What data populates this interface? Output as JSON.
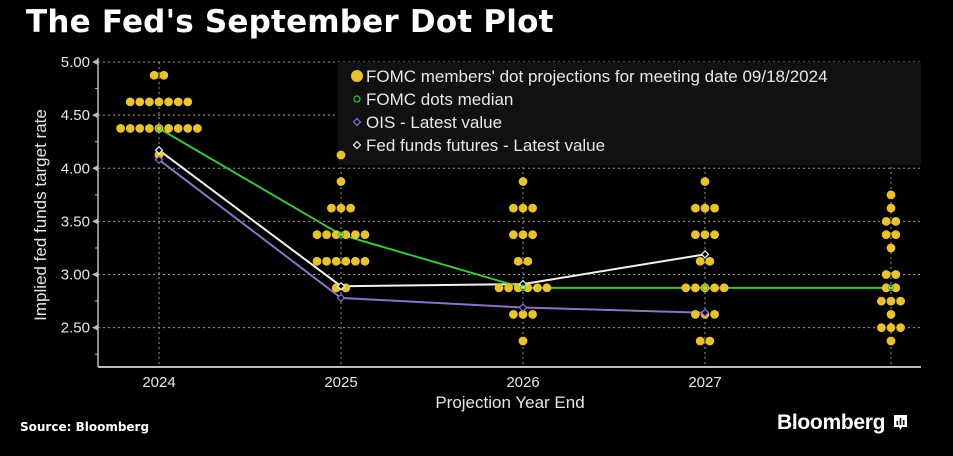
{
  "title": "The Fed's September Dot Plot",
  "source": "Source: Bloomberg",
  "brand": "Bloomberg",
  "chart_data": {
    "type": "scatter",
    "title": "The Fed's September Dot Plot",
    "xlabel": "Projection Year End",
    "ylabel": "Implied fed funds target rate",
    "categories": [
      "2024",
      "2025",
      "2026",
      "2027",
      ""
    ],
    "yticks": [
      "5.00",
      "4.50",
      "4.00",
      "3.50",
      "3.00",
      "2.50"
    ],
    "ytick_values": [
      5.0,
      4.5,
      4.0,
      3.5,
      3.0,
      2.5
    ],
    "ylim": [
      2.13,
      5.0
    ],
    "grid": true,
    "legend_position": "top-right",
    "colors": {
      "dots": "#e8c230",
      "median": "#3cc43c",
      "ois": "#8a73c9",
      "futures": "#f2f2f2",
      "grid": "#9a9a9a",
      "axis": "#bdbdbd",
      "legend_bg": "#111111"
    },
    "legend": [
      {
        "key": "dots",
        "label": "FOMC members' dot projections for meeting date 09/18/2024",
        "marker": "filled-circle"
      },
      {
        "key": "median",
        "label": "FOMC dots median",
        "marker": "open-circle"
      },
      {
        "key": "ois",
        "label": "OIS - Latest value",
        "marker": "open-diamond"
      },
      {
        "key": "futures",
        "label": "Fed funds futures - Latest value",
        "marker": "open-diamond"
      }
    ],
    "dots": [
      {
        "category": "2024",
        "levels": [
          {
            "rate": 4.875,
            "count": 2
          },
          {
            "rate": 4.625,
            "count": 7
          },
          {
            "rate": 4.375,
            "count": 9
          },
          {
            "rate": 4.125,
            "count": 1
          }
        ]
      },
      {
        "category": "2025",
        "levels": [
          {
            "rate": 4.125,
            "count": 1
          },
          {
            "rate": 3.875,
            "count": 1
          },
          {
            "rate": 3.625,
            "count": 3
          },
          {
            "rate": 3.375,
            "count": 6
          },
          {
            "rate": 3.125,
            "count": 6
          },
          {
            "rate": 2.875,
            "count": 2
          }
        ]
      },
      {
        "category": "2026",
        "levels": [
          {
            "rate": 3.875,
            "count": 1
          },
          {
            "rate": 3.625,
            "count": 3
          },
          {
            "rate": 3.375,
            "count": 3
          },
          {
            "rate": 3.125,
            "count": 2
          },
          {
            "rate": 2.875,
            "count": 6
          },
          {
            "rate": 2.625,
            "count": 3
          },
          {
            "rate": 2.375,
            "count": 1
          }
        ]
      },
      {
        "category": "2027",
        "levels": [
          {
            "rate": 3.875,
            "count": 1
          },
          {
            "rate": 3.625,
            "count": 3
          },
          {
            "rate": 3.375,
            "count": 3
          },
          {
            "rate": 3.125,
            "count": 2
          },
          {
            "rate": 2.875,
            "count": 5
          },
          {
            "rate": 2.625,
            "count": 3
          },
          {
            "rate": 2.375,
            "count": 2
          }
        ]
      },
      {
        "category": "",
        "levels": [
          {
            "rate": 3.75,
            "count": 1
          },
          {
            "rate": 3.625,
            "count": 1
          },
          {
            "rate": 3.5,
            "count": 2
          },
          {
            "rate": 3.375,
            "count": 2
          },
          {
            "rate": 3.25,
            "count": 1
          },
          {
            "rate": 3.0,
            "count": 2
          },
          {
            "rate": 2.875,
            "count": 2
          },
          {
            "rate": 2.75,
            "count": 3
          },
          {
            "rate": 2.625,
            "count": 1
          },
          {
            "rate": 2.5,
            "count": 3
          },
          {
            "rate": 2.375,
            "count": 1
          }
        ]
      }
    ],
    "series": [
      {
        "key": "median",
        "name": "FOMC dots median",
        "values": [
          4.375,
          3.375,
          2.875,
          2.875,
          2.875
        ]
      },
      {
        "key": "ois",
        "name": "OIS - Latest value",
        "values": [
          4.08,
          2.78,
          2.69,
          2.64,
          null
        ]
      },
      {
        "key": "futures",
        "name": "Fed funds futures - Latest value",
        "values": [
          4.17,
          2.89,
          2.91,
          3.19,
          null
        ]
      }
    ]
  }
}
